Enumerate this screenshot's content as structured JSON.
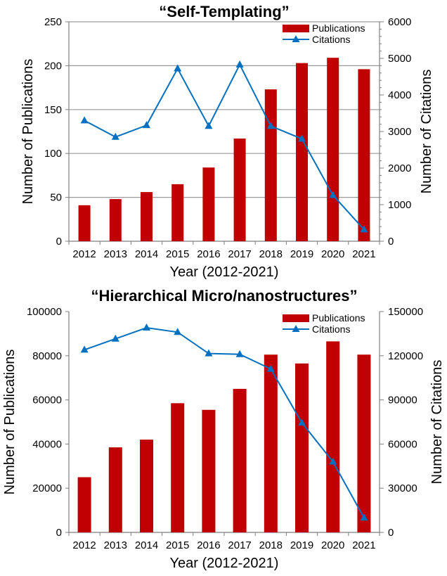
{
  "chart_data": [
    {
      "type": "bar+line",
      "title": "“Self-Templating”",
      "xlabel": "Year (2012-2021)",
      "ylabel": "Number of Publications",
      "y2label": "Number of Citations",
      "categories": [
        "2012",
        "2013",
        "2014",
        "2015",
        "2016",
        "2017",
        "2018",
        "2019",
        "2020",
        "2021"
      ],
      "ylim": [
        0,
        250
      ],
      "y2lim": [
        0,
        6000
      ],
      "yticks": [
        "0",
        "50",
        "100",
        "150",
        "200",
        "250"
      ],
      "y2ticks": [
        "0",
        "1000",
        "2000",
        "3000",
        "4000",
        "5000",
        "6000"
      ],
      "grid": true,
      "legend": "top-right",
      "series": [
        {
          "name": "Publications",
          "type": "bar",
          "axis": "left",
          "color": "#c00000",
          "values": [
            41,
            48,
            56,
            65,
            84,
            117,
            173,
            203,
            209,
            196
          ]
        },
        {
          "name": "Citations",
          "type": "line",
          "axis": "right",
          "color": "#0070c0",
          "values": [
            3300,
            2850,
            3170,
            4720,
            3150,
            4830,
            3150,
            2800,
            1260,
            320
          ]
        }
      ]
    },
    {
      "type": "bar+line",
      "title": "“Hierarchical Micro/nanostructures”",
      "xlabel": "Year (2012-2021)",
      "ylabel": "Number of Publications",
      "y2label": "Number of Citations",
      "categories": [
        "2012",
        "2013",
        "2014",
        "2015",
        "2016",
        "2017",
        "2018",
        "2019",
        "2020",
        "2021"
      ],
      "ylim": [
        0,
        100000
      ],
      "y2lim": [
        0,
        150000
      ],
      "yticks": [
        "0",
        "20000",
        "40000",
        "60000",
        "80000",
        "100000"
      ],
      "y2ticks": [
        "0",
        "30000",
        "60000",
        "90000",
        "120000",
        "150000"
      ],
      "grid": false,
      "legend": "top-right",
      "series": [
        {
          "name": "Publications",
          "type": "bar",
          "axis": "left",
          "color": "#c00000",
          "values": [
            25000,
            38500,
            42000,
            58500,
            55500,
            65000,
            80500,
            76500,
            86500,
            80500
          ]
        },
        {
          "name": "Citations",
          "type": "line",
          "axis": "right",
          "color": "#0070c0",
          "values": [
            124000,
            131500,
            139000,
            136000,
            121500,
            121000,
            111000,
            74500,
            48000,
            10000
          ]
        }
      ]
    }
  ]
}
